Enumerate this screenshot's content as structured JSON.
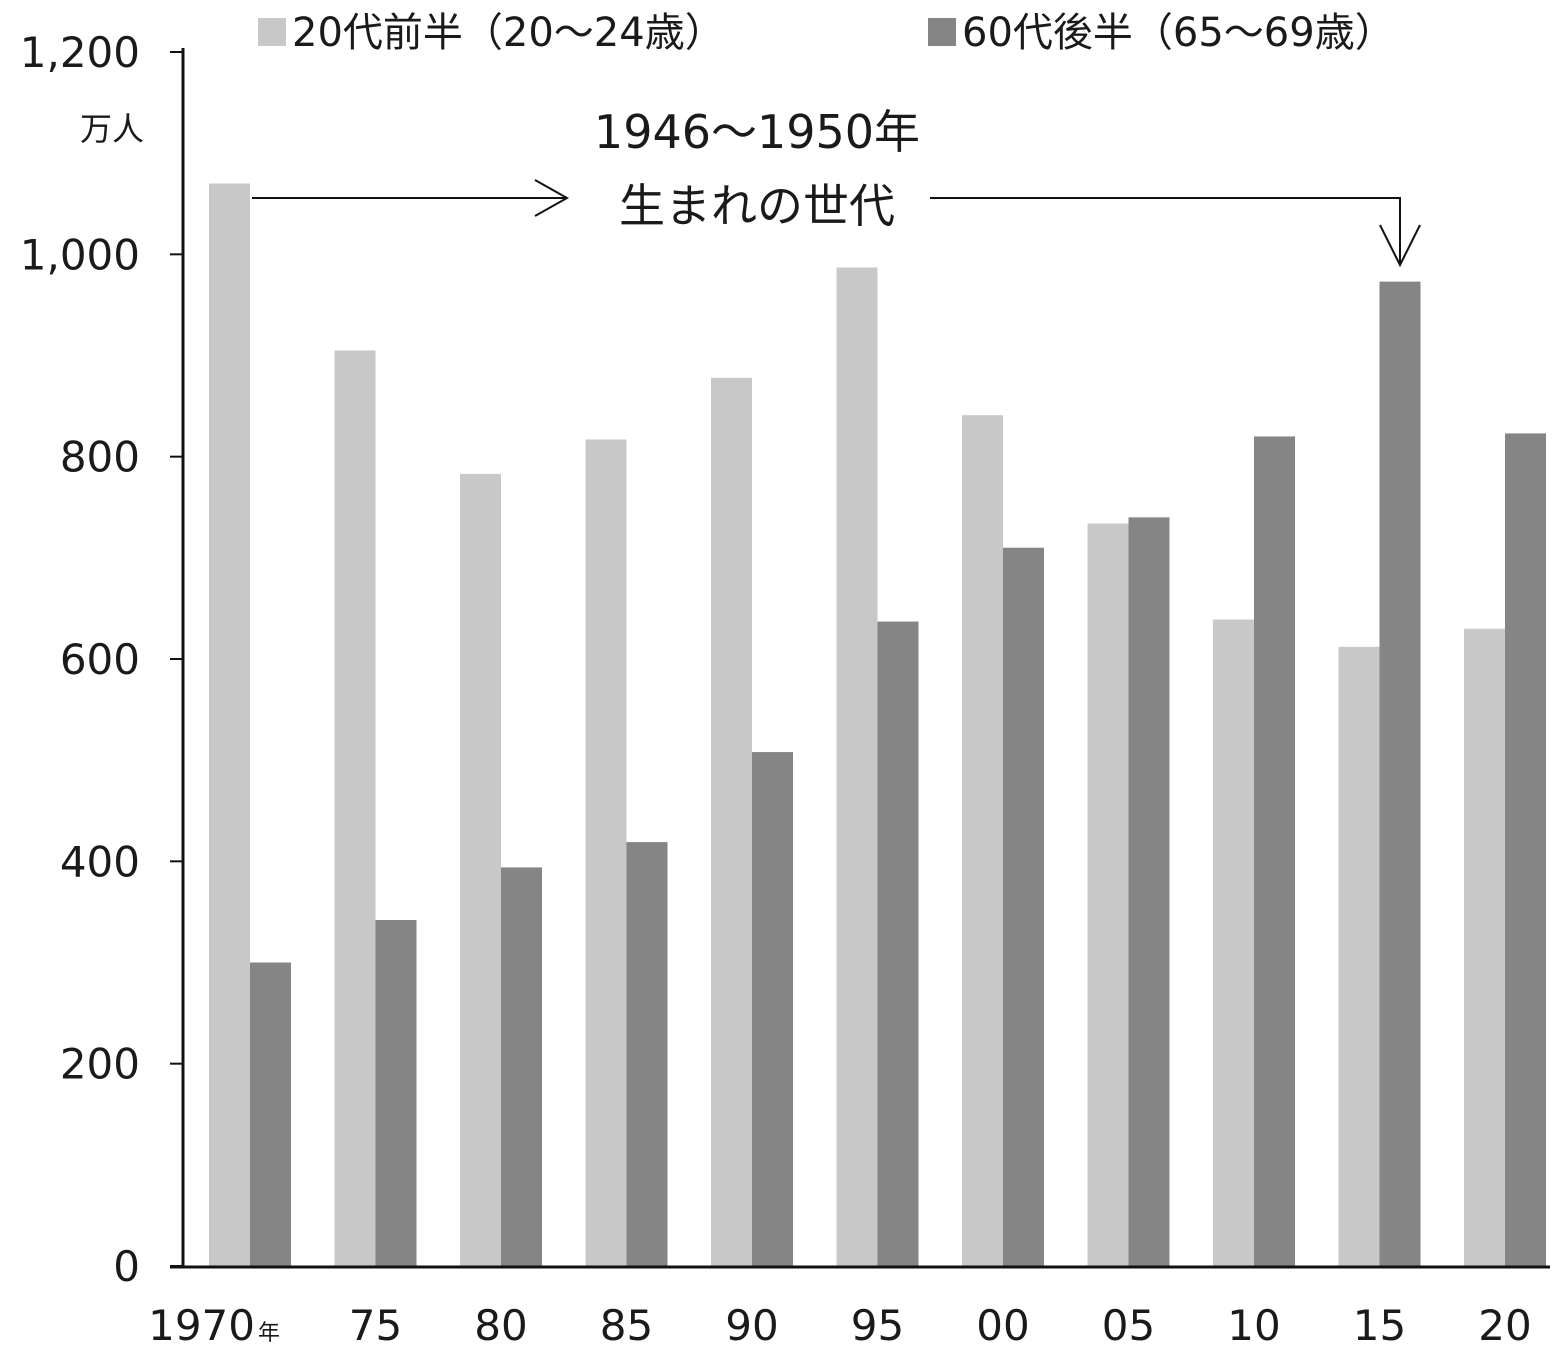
{
  "chart_data": {
    "type": "bar",
    "categories": [
      "1970",
      "75",
      "80",
      "85",
      "90",
      "95",
      "00",
      "05",
      "10",
      "15",
      "20"
    ],
    "x_unit": "年",
    "y_unit": "万人",
    "ylim": [
      0,
      1200
    ],
    "yticks": [
      "0",
      "200",
      "400",
      "600",
      "800",
      "1,000",
      "1,200"
    ],
    "ytick_values": [
      0,
      200,
      400,
      600,
      800,
      1000,
      1200
    ],
    "grid": false,
    "legend_position": "top",
    "series": [
      {
        "name": "20代前半（20～24歳）",
        "color": "#c8c8c8",
        "values": [
          1070,
          905,
          783,
          817,
          878,
          987,
          841,
          734,
          639,
          612,
          630
        ]
      },
      {
        "name": "60代後半（65～69歳）",
        "color": "#858585",
        "values": [
          300,
          342,
          394,
          419,
          508,
          637,
          710,
          740,
          820,
          973,
          823
        ]
      }
    ],
    "annotation": {
      "line1": "1946～1950年",
      "line2": "生まれの世代",
      "from_category": "1970",
      "to_category": "15"
    }
  }
}
